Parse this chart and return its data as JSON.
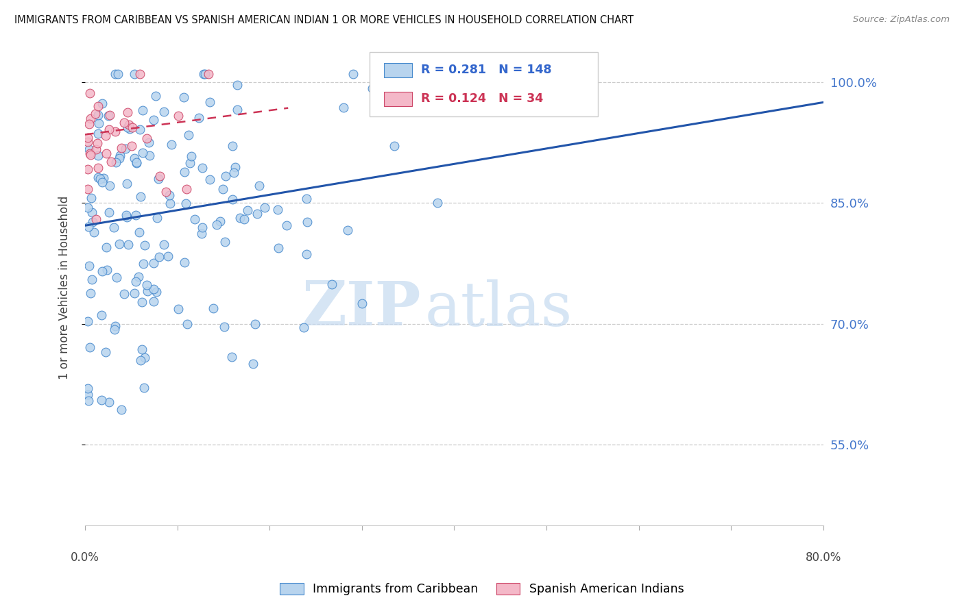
{
  "title": "IMMIGRANTS FROM CARIBBEAN VS SPANISH AMERICAN INDIAN 1 OR MORE VEHICLES IN HOUSEHOLD CORRELATION CHART",
  "source": "Source: ZipAtlas.com",
  "ylabel": "1 or more Vehicles in Household",
  "ytick_labels": [
    "100.0%",
    "85.0%",
    "70.0%",
    "55.0%"
  ],
  "ytick_values": [
    1.0,
    0.85,
    0.7,
    0.55
  ],
  "xmin": 0.0,
  "xmax": 0.8,
  "ymin": 0.45,
  "ymax": 1.04,
  "legend_blue_R": "0.281",
  "legend_blue_N": "148",
  "legend_pink_R": "0.124",
  "legend_pink_N": "34",
  "legend_blue_label": "Immigrants from Caribbean",
  "legend_pink_label": "Spanish American Indians",
  "blue_fill_color": "#b8d4ee",
  "pink_fill_color": "#f4b8c8",
  "blue_edge_color": "#4488cc",
  "pink_edge_color": "#cc4466",
  "blue_line_color": "#2255aa",
  "pink_line_color": "#cc3355",
  "watermark_zip": "ZIP",
  "watermark_atlas": "atlas",
  "blue_trend_x0": 0.0,
  "blue_trend_y0": 0.822,
  "blue_trend_x1": 0.8,
  "blue_trend_y1": 0.975,
  "pink_trend_x0": 0.0,
  "pink_trend_y0": 0.935,
  "pink_trend_x1": 0.22,
  "pink_trend_y1": 0.968
}
